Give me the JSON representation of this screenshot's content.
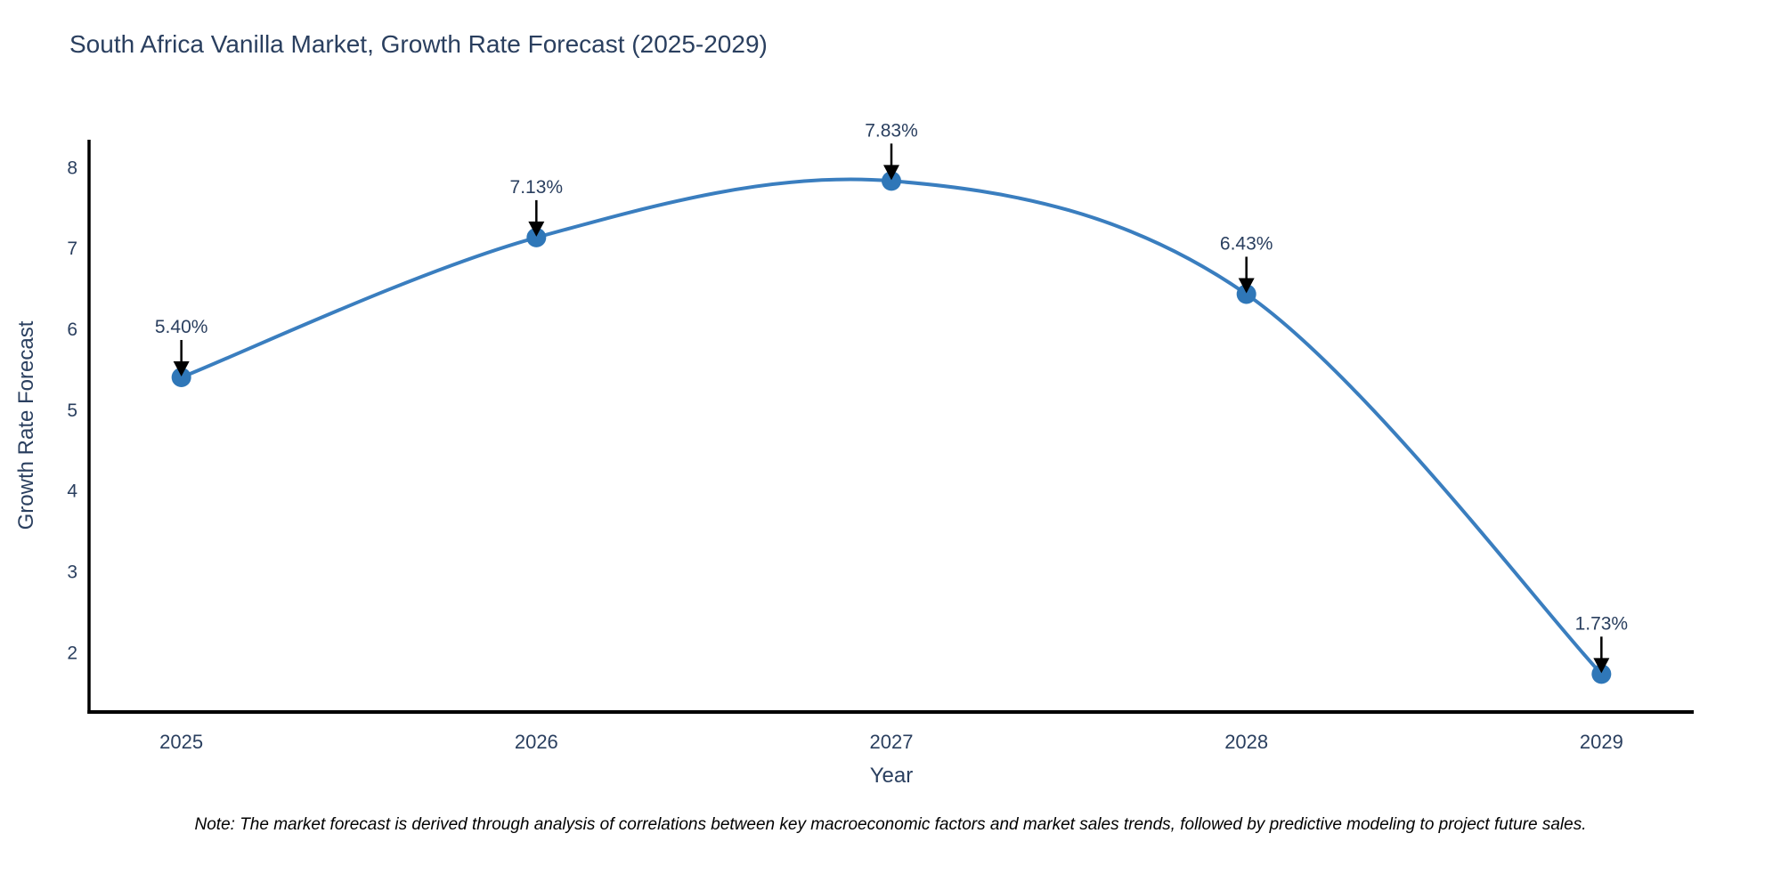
{
  "chart_data": {
    "type": "line",
    "title": "South Africa Vanilla Market, Growth Rate Forecast (2025-2029)",
    "x": [
      2025,
      2026,
      2027,
      2028,
      2029
    ],
    "series": [
      {
        "name": "Growth Rate Forecast",
        "values": [
          5.4,
          7.13,
          7.83,
          6.43,
          1.73
        ]
      }
    ],
    "point_labels": [
      "5.40%",
      "7.13%",
      "7.83%",
      "6.43%",
      "1.73%"
    ],
    "xlabel": "Year",
    "ylabel": "Growth Rate Forecast",
    "x_tick_labels": [
      "2025",
      "2026",
      "2027",
      "2028",
      "2029"
    ],
    "y_ticks": [
      2,
      3,
      4,
      5,
      6,
      7,
      8
    ],
    "y_tick_labels": [
      "2",
      "3",
      "4",
      "5",
      "6",
      "7",
      "8"
    ],
    "xlim": [
      2024.74,
      2029.26
    ],
    "ylim": [
      1.26,
      8.34
    ],
    "line_shape": "spline",
    "grid": false,
    "legend_position": "none",
    "line_color": "#3a7ebf",
    "marker_color": "#2f77b8",
    "annotation_arrow_color": "#000000",
    "text_color": "#2a3f5f",
    "axis_line_color": "#000000"
  },
  "footnote": "Note: The market forecast is derived through analysis of correlations between key macroeconomic factors and market sales trends, followed by predictive modeling to project future sales."
}
